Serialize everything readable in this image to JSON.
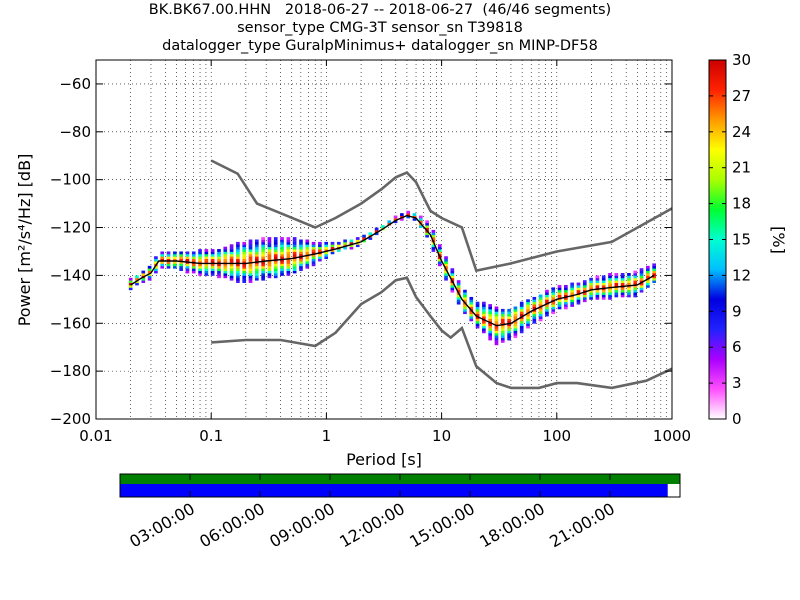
{
  "header": {
    "title_line1": "BK.BK67.00.HHN   2018-06-27 -- 2018-06-27  (46/46 segments)",
    "title_line2": "sensor_type CMG-3T sensor_sn T39818",
    "title_line3": "datalogger_type GuralpMinimus+ datalogger_sn MINP-DF58"
  },
  "chart_data": [
    {
      "type": "heatmap",
      "xlabel": "Period [s]",
      "ylabel": "Power [m²/s⁴/Hz] [dB]",
      "x_scale": "log",
      "xlim": [
        0.01,
        1000
      ],
      "ylim": [
        -200,
        -50
      ],
      "x_ticks": [
        0.01,
        0.1,
        1,
        10,
        100,
        1000
      ],
      "x_tick_labels": [
        "0.01",
        "0.1",
        "1",
        "10",
        "100",
        "1000"
      ],
      "y_ticks": [
        -200,
        -180,
        -160,
        -140,
        -120,
        -100,
        -80,
        -60
      ],
      "y_tick_labels": [
        "−200",
        "−180",
        "−160",
        "−140",
        "−120",
        "−100",
        "−80",
        "−60"
      ],
      "grid": true,
      "colorbar": {
        "label": "[%]",
        "range": [
          0,
          30
        ],
        "ticks": [
          0,
          3,
          6,
          9,
          12,
          15,
          18,
          21,
          24,
          27,
          30
        ],
        "tick_labels": [
          "0",
          "3",
          "6",
          "9",
          "12",
          "15",
          "18",
          "21",
          "24",
          "27",
          "30"
        ],
        "colormap": [
          "#ffffff",
          "#ff4fff",
          "#aa00ff",
          "#2222ff",
          "#0000e0",
          "#00bfff",
          "#00ffd0",
          "#00ff30",
          "#aaff00",
          "#ffff00",
          "#ff9900",
          "#ff2200",
          "#cc0000"
        ]
      },
      "median_curve": {
        "x": [
          0.02,
          0.025,
          0.03,
          0.035,
          0.05,
          0.08,
          0.12,
          0.2,
          0.3,
          0.5,
          0.8,
          1.2,
          2,
          3,
          4,
          5,
          6,
          8,
          10,
          15,
          20,
          30,
          40,
          60,
          100,
          150,
          200,
          300,
          500,
          700
        ],
        "y": [
          -144,
          -141,
          -139,
          -134,
          -134,
          -135,
          -135,
          -135,
          -134,
          -133,
          -131,
          -129,
          -126,
          -121,
          -117,
          -115,
          -116,
          -123,
          -134,
          -150,
          -157,
          -161,
          -160,
          -155,
          -150,
          -148,
          -146,
          -145,
          -144,
          -140
        ]
      },
      "reference_curves": {
        "color": "#666666",
        "high": {
          "x": [
            0.1,
            0.17,
            0.25,
            0.4,
            0.8,
            1.2,
            2,
            3,
            4,
            5,
            6,
            8,
            10,
            15,
            20,
            40,
            100,
            300,
            1000
          ],
          "y": [
            -92,
            -97.5,
            -110,
            -114,
            -120,
            -116,
            -110,
            -104,
            -99,
            -97,
            -101,
            -113,
            -116,
            -120,
            -138,
            -135,
            -130,
            -126,
            -112
          ]
        },
        "low": {
          "x": [
            0.1,
            0.2,
            0.4,
            0.8,
            1.2,
            2,
            3,
            4,
            5,
            6,
            8,
            10,
            12,
            15,
            20,
            30,
            40,
            70,
            100,
            150,
            300,
            600,
            1000
          ],
          "y": [
            -168,
            -167,
            -167,
            -169.5,
            -164,
            -152,
            -147,
            -142,
            -141,
            -149,
            -157,
            -163,
            -166,
            -162,
            -178,
            -185,
            -187,
            -187,
            -185,
            -185,
            -187,
            -184,
            -179
          ]
        }
      },
      "density_band": {
        "x": [
          0.02,
          0.025,
          0.03,
          0.035,
          0.05,
          0.08,
          0.12,
          0.2,
          0.3,
          0.5,
          0.8,
          1.2,
          2,
          3,
          4,
          5,
          6,
          8,
          10,
          15,
          20,
          30,
          40,
          60,
          100,
          150,
          200,
          300,
          500,
          700
        ],
        "upper": [
          -142,
          -139,
          -136,
          -132,
          -131,
          -131,
          -130,
          -127,
          -125,
          -124,
          -127,
          -127,
          -125,
          -120,
          -116,
          -114.5,
          -115,
          -120,
          -130,
          -145,
          -151,
          -155,
          -155,
          -151,
          -146,
          -144,
          -142,
          -140,
          -139,
          -135
        ],
        "lower": [
          -146,
          -143,
          -141,
          -138,
          -138,
          -140,
          -141,
          -143,
          -141,
          -139,
          -135,
          -131,
          -128,
          -122,
          -118,
          -116,
          -118,
          -127,
          -138,
          -154,
          -161,
          -169,
          -168,
          -162,
          -155,
          -152,
          -150,
          -149,
          -148,
          -143
        ]
      }
    },
    {
      "type": "bar",
      "title": "",
      "xlabel": "",
      "ylabel": "",
      "x_tick_labels": [
        "03:00:00",
        "06:00:00",
        "09:00:00",
        "12:00:00",
        "15:00:00",
        "18:00:00",
        "21:00:00"
      ],
      "series": [
        {
          "color": "#008000",
          "values": [
            1.0
          ]
        },
        {
          "color": "#0000ff",
          "values": [
            0.978
          ]
        }
      ]
    }
  ]
}
